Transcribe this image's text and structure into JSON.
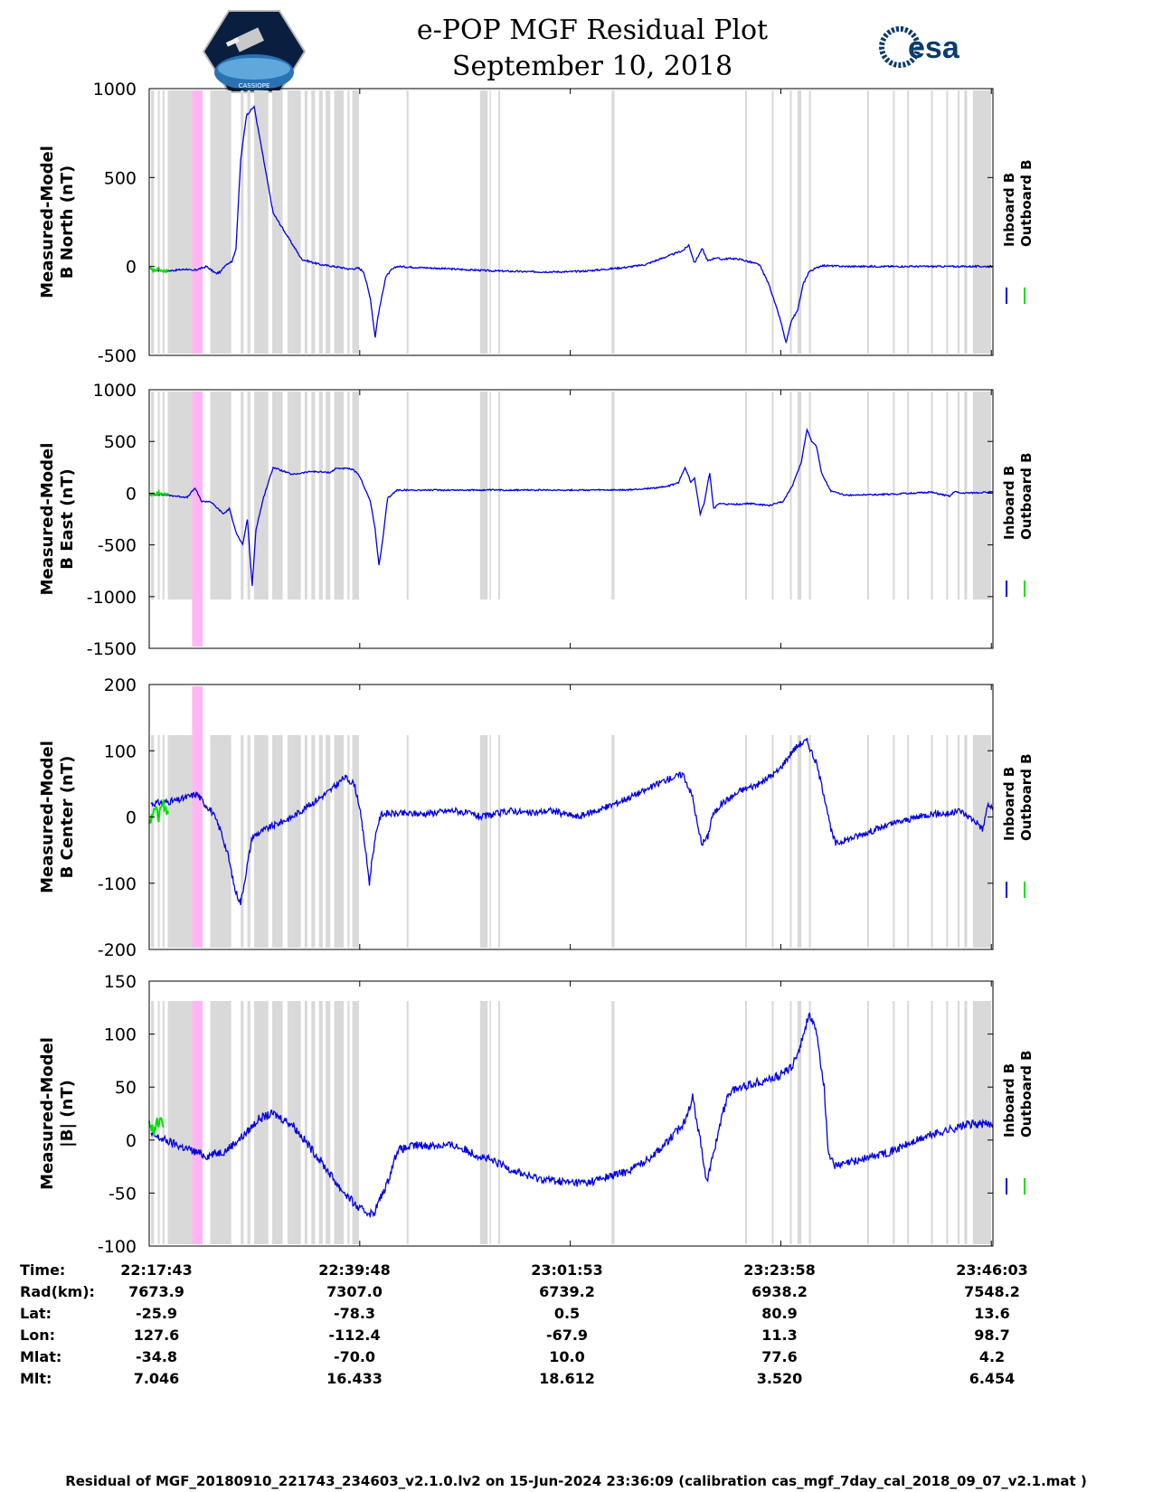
{
  "title_line1": "e-POP MGF Residual Plot",
  "title_line2": "September 10, 2018",
  "logo_left": "CASSIOPE",
  "logo_right": "esa",
  "colors": {
    "inboard": "#0000e0",
    "outboard": "#00e000",
    "gap": "#d9d9d9",
    "event": "#ffb6f4"
  },
  "chart_data": [
    {
      "type": "line",
      "ylabel": [
        "Measured-Model",
        "B North (nT)"
      ],
      "ylim": [
        -500,
        1000
      ],
      "yticks": [
        -500,
        0,
        500,
        1000
      ],
      "legend": [
        "Inboard B",
        "Outboard B"
      ],
      "series": [
        {
          "name": "Inboard B",
          "x": [
            0.2,
            2,
            3,
            4,
            4.5,
            5.5,
            6,
            7,
            7.5,
            8,
            8.7,
            9.1,
            9.6,
            10.2,
            11,
            13,
            16,
            18,
            20,
            21,
            22,
            22.5,
            23.2,
            23.7,
            24,
            24.8,
            25.4,
            26,
            28,
            32,
            36,
            40,
            44,
            46,
            48,
            50,
            52,
            54,
            56,
            56.6,
            57.2,
            58,
            58.6,
            59.4,
            60,
            61,
            62,
            64,
            65,
            66.2,
            66.8,
            67.4,
            68,
            68.6,
            69.2,
            70.5,
            73,
            78,
            84,
            88.5
          ],
          "values": [
            -20,
            -25,
            -20,
            -15,
            -25,
            -10,
            0,
            -40,
            -30,
            10,
            30,
            100,
            600,
            850,
            900,
            300,
            40,
            10,
            -5,
            -15,
            -10,
            -30,
            -180,
            -400,
            -280,
            -60,
            -20,
            0,
            -5,
            -15,
            -25,
            -30,
            -30,
            -25,
            -15,
            -5,
            10,
            50,
            90,
            120,
            20,
            100,
            30,
            50,
            40,
            45,
            40,
            10,
            -100,
            -300,
            -430,
            -300,
            -250,
            -100,
            -30,
            5,
            0,
            0,
            0,
            0
          ]
        },
        {
          "name": "Outboard B",
          "x": [
            0,
            0.5,
            1,
            1.5,
            2
          ],
          "values": [
            -10,
            -25,
            -15,
            -30,
            -20
          ]
        }
      ]
    },
    {
      "type": "line",
      "ylabel": [
        "Measured-Model",
        "B East (nT)"
      ],
      "ylim": [
        -1500,
        1000
      ],
      "yticks": [
        -1500,
        -1000,
        -500,
        0,
        500,
        1000
      ],
      "legend": [
        "Inboard B",
        "Outboard B"
      ],
      "series": [
        {
          "name": "Inboard B",
          "x": [
            0.2,
            2,
            4,
            4.8,
            5.5,
            6.4,
            7.2,
            7.8,
            8.4,
            9.2,
            9.8,
            10.3,
            10.8,
            11.2,
            12,
            13,
            15,
            17,
            19,
            19.6,
            20.3,
            21,
            21.5,
            22.1,
            22.6,
            23.2,
            23.7,
            24.1,
            24.5,
            25,
            26,
            30,
            38,
            46,
            50,
            53,
            54.5,
            55.5,
            56.2,
            56.8,
            57.2,
            57.8,
            58.2,
            58.8,
            59.2,
            59.8,
            61,
            63,
            65,
            66.5,
            67.5,
            68.4,
            69,
            69.5,
            70,
            70.5,
            71.5,
            73,
            78,
            82,
            84,
            84.5,
            85,
            88.5
          ],
          "values": [
            -10,
            -20,
            -40,
            50,
            -80,
            -80,
            -150,
            -200,
            -150,
            -400,
            -500,
            -250,
            -900,
            -350,
            -40,
            250,
            180,
            210,
            200,
            240,
            240,
            235,
            220,
            160,
            50,
            -80,
            -350,
            -700,
            -450,
            -50,
            30,
            30,
            30,
            30,
            30,
            50,
            70,
            100,
            250,
            110,
            150,
            -200,
            -100,
            200,
            -150,
            -100,
            -110,
            -100,
            -120,
            -80,
            80,
            300,
            620,
            500,
            450,
            200,
            20,
            -20,
            -10,
            10,
            -30,
            20,
            0,
            10
          ]
        },
        {
          "name": "Outboard B",
          "x": [
            0,
            0.5,
            1,
            1.5,
            2
          ],
          "values": [
            -10,
            -20,
            5,
            -15,
            -5
          ]
        }
      ]
    },
    {
      "type": "line",
      "ylabel": [
        "Measured-Model",
        "B Center (nT)"
      ],
      "ylim": [
        -200,
        200
      ],
      "yticks": [
        -200,
        -100,
        0,
        100,
        200
      ],
      "legend": [
        "Inboard B",
        "Outboard B"
      ],
      "series": [
        {
          "name": "Inboard B",
          "x": [
            0.2,
            3,
            5,
            5.8,
            6.5,
            7.5,
            8.3,
            9,
            9.6,
            10.2,
            10.8,
            12,
            15,
            17,
            19,
            20.5,
            21.5,
            22,
            22.6,
            23.1,
            23.4,
            24,
            24.4,
            25,
            26,
            29,
            32,
            35,
            38,
            40,
            42,
            45,
            48,
            52,
            54,
            56,
            57,
            57.6,
            58,
            58.6,
            59,
            60,
            61.6,
            62,
            64,
            66,
            67.5,
            68.2,
            69,
            70,
            71,
            71.5,
            72,
            74,
            78,
            82,
            84,
            85,
            87,
            87.4,
            88,
            88.5
          ],
          "values": [
            20,
            25,
            35,
            20,
            10,
            -20,
            -60,
            -110,
            -130,
            -80,
            -30,
            -20,
            0,
            20,
            40,
            60,
            50,
            20,
            -40,
            -100,
            -60,
            -10,
            5,
            5,
            5,
            5,
            10,
            0,
            10,
            5,
            10,
            0,
            15,
            40,
            55,
            65,
            30,
            -20,
            -40,
            -30,
            0,
            20,
            35,
            40,
            50,
            70,
            100,
            110,
            115,
            80,
            20,
            -20,
            -40,
            -30,
            -10,
            5,
            5,
            10,
            -10,
            -20,
            20,
            10
          ]
        },
        {
          "name": "Outboard B",
          "x": [
            0,
            0.5,
            1,
            1.5,
            2
          ],
          "values": [
            -10,
            15,
            0,
            20,
            5
          ]
        }
      ]
    },
    {
      "type": "line",
      "ylabel": [
        "Measured-Model",
        "|B| (nT)"
      ],
      "ylim": [
        -100,
        150
      ],
      "yticks": [
        -100,
        -50,
        0,
        50,
        100,
        150
      ],
      "legend": [
        "Inboard B",
        "Outboard B"
      ],
      "series": [
        {
          "name": "Inboard B",
          "x": [
            0.2,
            3,
            6,
            8,
            10,
            11.5,
            13,
            15,
            18,
            20,
            22,
            23.5,
            25,
            26,
            28,
            32,
            36,
            40,
            44,
            46,
            48,
            50,
            52,
            54,
            56,
            57,
            57.8,
            58.5,
            59,
            60,
            60.8,
            62,
            64,
            66,
            67.5,
            68.5,
            69.2,
            70,
            70.8,
            71.2,
            72,
            74,
            78,
            82,
            86,
            88.5
          ],
          "values": [
            5,
            -5,
            -15,
            -10,
            5,
            20,
            25,
            15,
            -20,
            -45,
            -65,
            -70,
            -40,
            -10,
            -5,
            -5,
            -20,
            -35,
            -40,
            -40,
            -35,
            -30,
            -20,
            -5,
            15,
            40,
            0,
            -40,
            -20,
            20,
            45,
            50,
            55,
            60,
            70,
            95,
            120,
            100,
            50,
            -10,
            -25,
            -20,
            -10,
            5,
            15,
            15
          ]
        },
        {
          "name": "Outboard B",
          "x": [
            0,
            0.5,
            1,
            1.5
          ],
          "values": [
            15,
            10,
            18,
            12
          ]
        }
      ]
    }
  ],
  "x_ticks": [
    0,
    22.083,
    44.167,
    66.25,
    88.333
  ],
  "table": {
    "labels": [
      "Time:",
      "Rad(km):",
      "Lat:",
      "Lon:",
      "Mlat:",
      "Mlt:"
    ],
    "columns": [
      [
        "22:17:43",
        "7673.9",
        "-25.9",
        "127.6",
        "-34.8",
        "7.046"
      ],
      [
        "22:39:48",
        "7307.0",
        "-78.3",
        "-112.4",
        "-70.0",
        "16.433"
      ],
      [
        "23:01:53",
        "6739.2",
        "0.5",
        "-67.9",
        "10.0",
        "18.612"
      ],
      [
        "23:23:58",
        "6938.2",
        "80.9",
        "11.3",
        "77.6",
        "3.520"
      ],
      [
        "23:46:03",
        "7548.2",
        "13.6",
        "98.7",
        "4.2",
        "6.454"
      ]
    ]
  },
  "footer": "Residual of MGF_20180910_221743_234603_v2.1.0.lv2 on 15-Jun-2024 23:36:09 (calibration cas_mgf_7day_cal_2018_09_07_v2.1.mat )"
}
